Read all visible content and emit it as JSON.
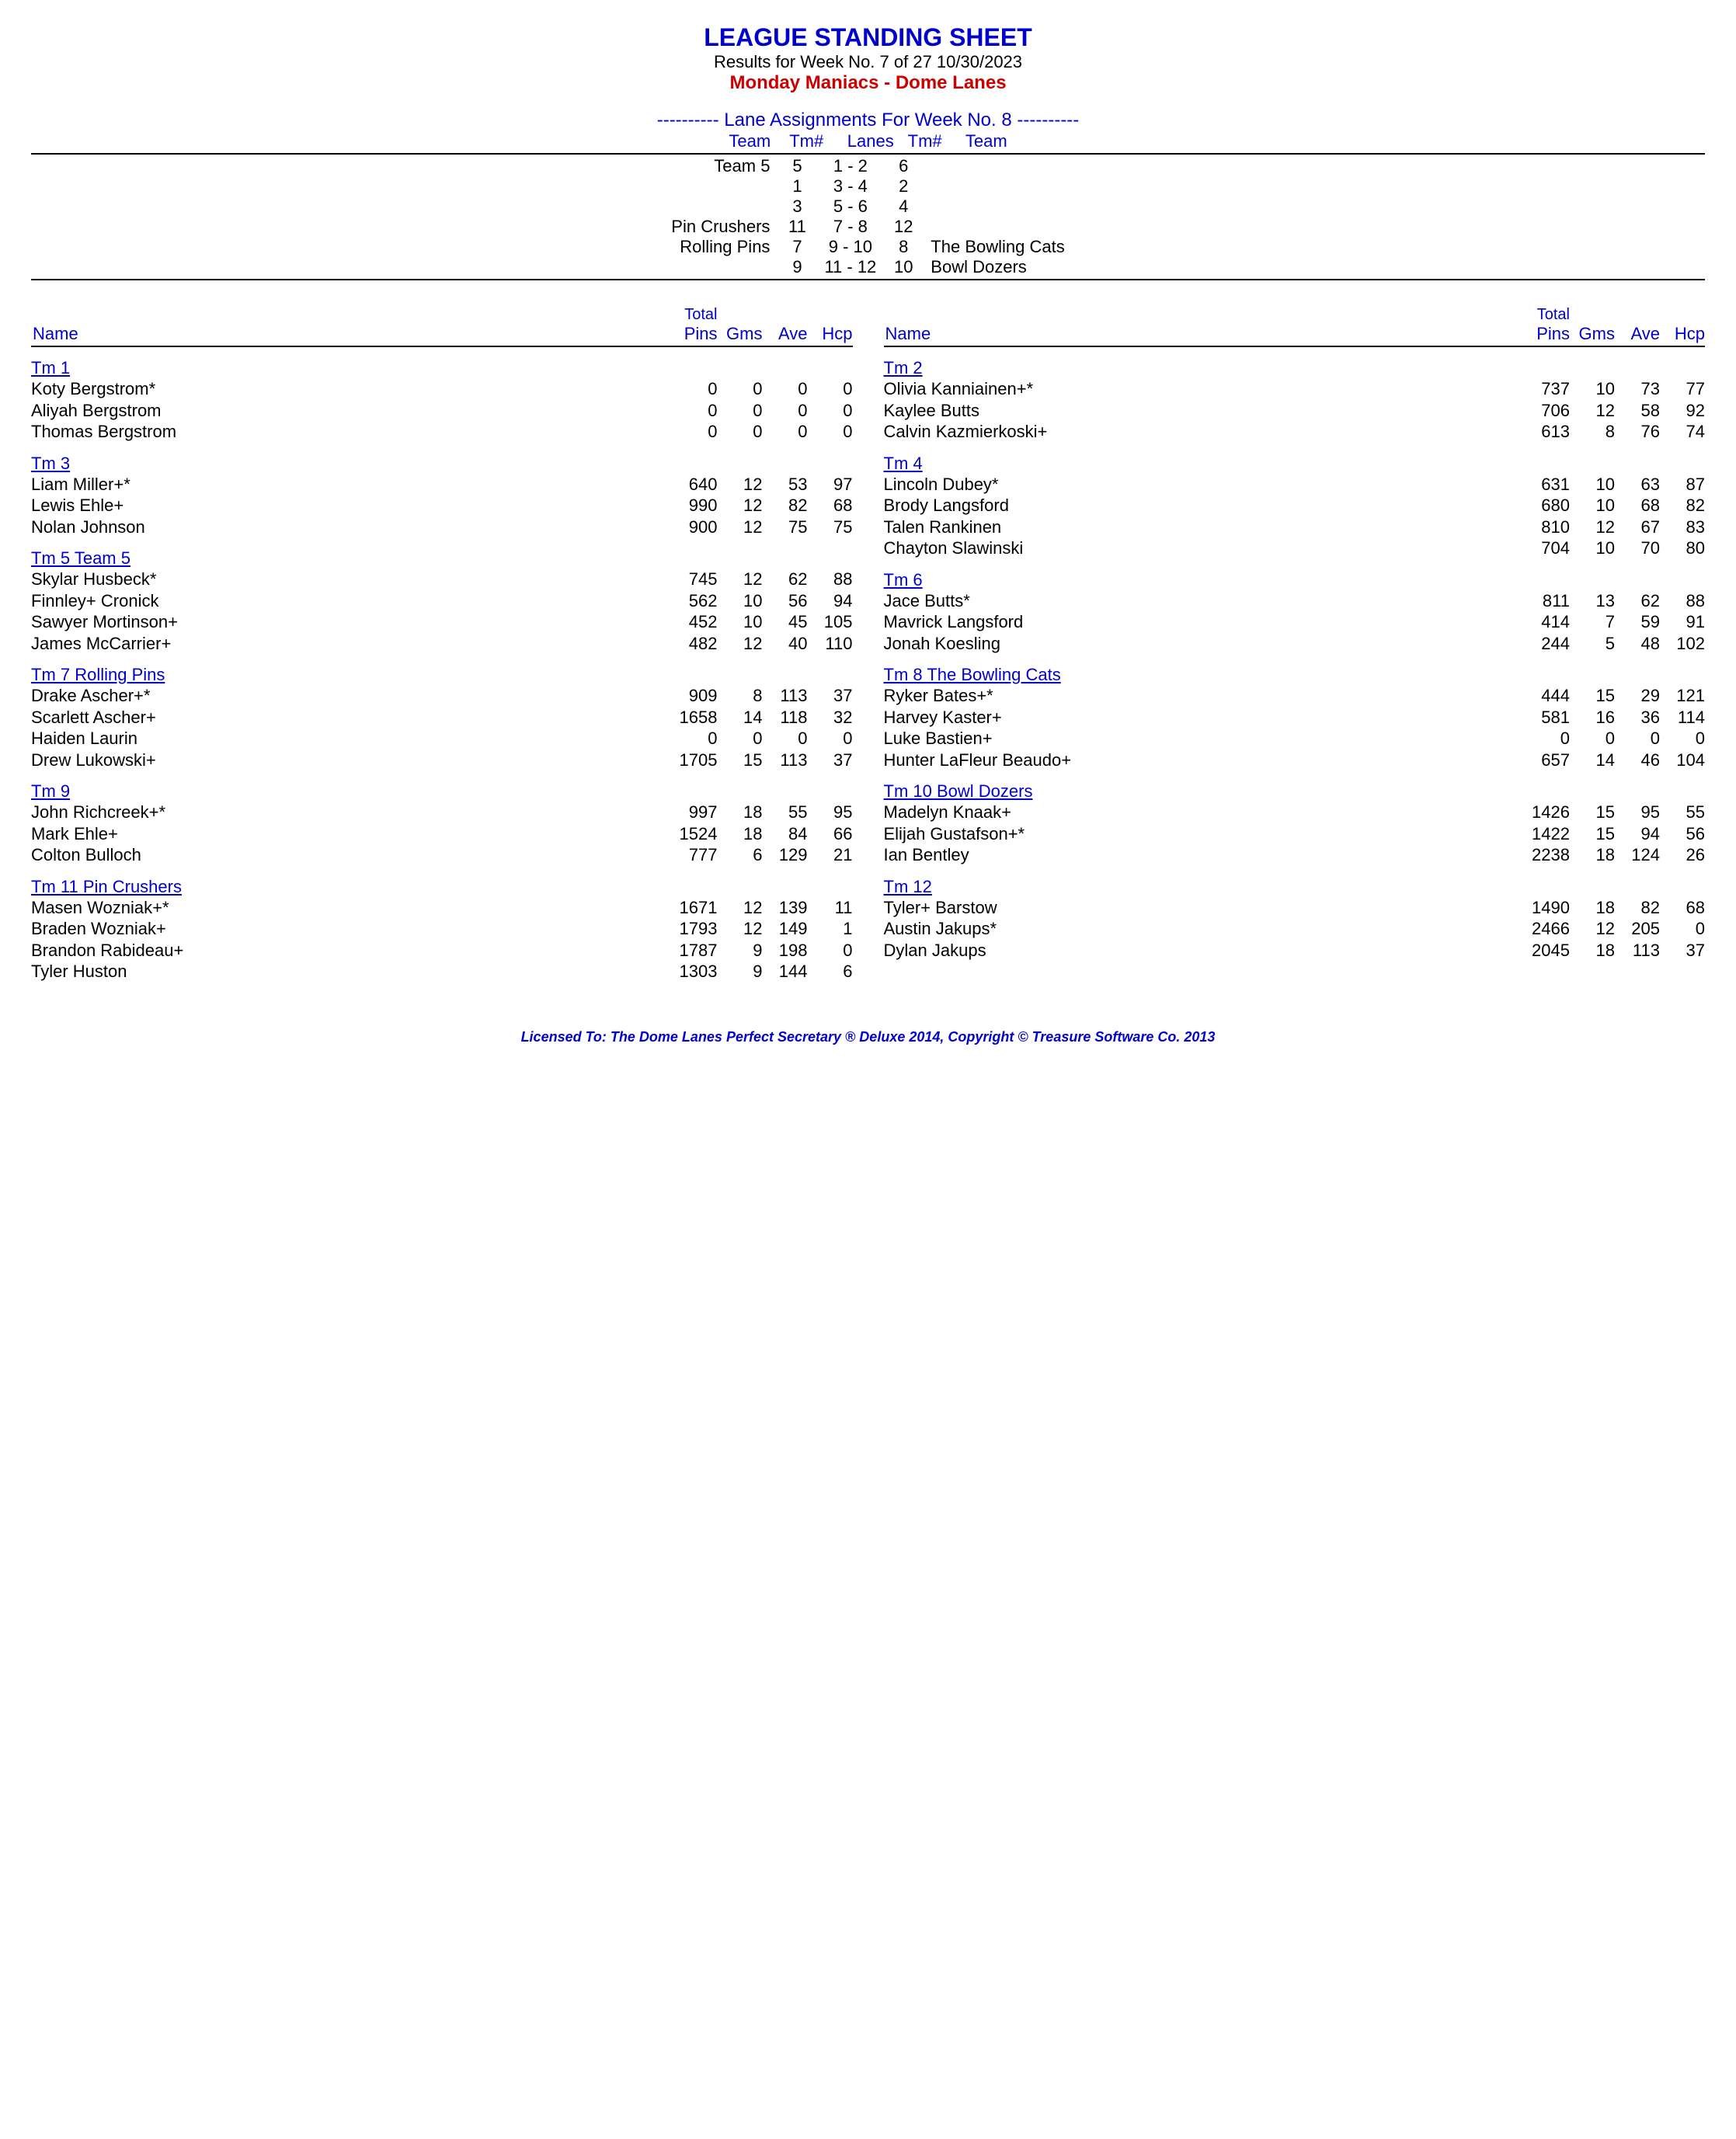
{
  "header": {
    "title": "LEAGUE STANDING SHEET",
    "subtitle": "Results for Week No. 7 of 27    10/30/2023",
    "league": "Monday Maniacs - Dome Lanes"
  },
  "lanes": {
    "heading": "---------- Lane Assignments For Week No. 8 ----------",
    "col_team_l": "Team",
    "col_tm_l": "Tm#",
    "col_lanes": "Lanes",
    "col_tm_r": "Tm#",
    "col_team_r": "Team",
    "rows": [
      {
        "tl": "Team 5",
        "nl": "5",
        "lane": "1 - 2",
        "nr": "6",
        "tr": ""
      },
      {
        "tl": "",
        "nl": "1",
        "lane": "3 - 4",
        "nr": "2",
        "tr": ""
      },
      {
        "tl": "",
        "nl": "3",
        "lane": "5 - 6",
        "nr": "4",
        "tr": ""
      },
      {
        "tl": "Pin Crushers",
        "nl": "11",
        "lane": "7 - 8",
        "nr": "12",
        "tr": ""
      },
      {
        "tl": "Rolling Pins",
        "nl": "7",
        "lane": "9 - 10",
        "nr": "8",
        "tr": "The Bowling Cats"
      },
      {
        "tl": "",
        "nl": "9",
        "lane": "11 - 12",
        "nr": "10",
        "tr": "Bowl Dozers"
      }
    ]
  },
  "col_headers": {
    "name": "Name",
    "total": "Total",
    "pins": "Pins",
    "gms": "Gms",
    "ave": "Ave",
    "hcp": "Hcp"
  },
  "left_teams": [
    {
      "name": "Tm 1",
      "players": [
        {
          "n": "Koty Bergstrom*",
          "p": "0",
          "g": "0",
          "a": "0",
          "h": "0"
        },
        {
          "n": "Aliyah Bergstrom",
          "p": "0",
          "g": "0",
          "a": "0",
          "h": "0"
        },
        {
          "n": "Thomas Bergstrom",
          "p": "0",
          "g": "0",
          "a": "0",
          "h": "0"
        }
      ]
    },
    {
      "name": "Tm 3",
      "players": [
        {
          "n": "Liam Miller+*",
          "p": "640",
          "g": "12",
          "a": "53",
          "h": "97"
        },
        {
          "n": "Lewis Ehle+",
          "p": "990",
          "g": "12",
          "a": "82",
          "h": "68"
        },
        {
          "n": "Nolan Johnson",
          "p": "900",
          "g": "12",
          "a": "75",
          "h": "75"
        }
      ]
    },
    {
      "name": "Tm 5 Team 5",
      "players": [
        {
          "n": "Skylar Husbeck*",
          "p": "745",
          "g": "12",
          "a": "62",
          "h": "88"
        },
        {
          "n": "Finnley+ Cronick",
          "p": "562",
          "g": "10",
          "a": "56",
          "h": "94"
        },
        {
          "n": "Sawyer Mortinson+",
          "p": "452",
          "g": "10",
          "a": "45",
          "h": "105"
        },
        {
          "n": "James McCarrier+",
          "p": "482",
          "g": "12",
          "a": "40",
          "h": "110"
        }
      ]
    },
    {
      "name": "Tm 7 Rolling Pins",
      "players": [
        {
          "n": "Drake Ascher+*",
          "p": "909",
          "g": "8",
          "a": "113",
          "h": "37"
        },
        {
          "n": "Scarlett Ascher+",
          "p": "1658",
          "g": "14",
          "a": "118",
          "h": "32"
        },
        {
          "n": "Haiden Laurin",
          "p": "0",
          "g": "0",
          "a": "0",
          "h": "0"
        },
        {
          "n": "Drew Lukowski+",
          "p": "1705",
          "g": "15",
          "a": "113",
          "h": "37"
        }
      ]
    },
    {
      "name": "Tm 9",
      "players": [
        {
          "n": "John Richcreek+*",
          "p": "997",
          "g": "18",
          "a": "55",
          "h": "95"
        },
        {
          "n": "Mark Ehle+",
          "p": "1524",
          "g": "18",
          "a": "84",
          "h": "66"
        },
        {
          "n": "Colton Bulloch",
          "p": "777",
          "g": "6",
          "a": "129",
          "h": "21"
        }
      ]
    },
    {
      "name": "Tm 11 Pin Crushers",
      "players": [
        {
          "n": "Masen Wozniak+*",
          "p": "1671",
          "g": "12",
          "a": "139",
          "h": "11"
        },
        {
          "n": "Braden Wozniak+",
          "p": "1793",
          "g": "12",
          "a": "149",
          "h": "1"
        },
        {
          "n": "Brandon Rabideau+",
          "p": "1787",
          "g": "9",
          "a": "198",
          "h": "0"
        },
        {
          "n": "Tyler Huston",
          "p": "1303",
          "g": "9",
          "a": "144",
          "h": "6"
        }
      ]
    }
  ],
  "right_teams": [
    {
      "name": "Tm 2",
      "players": [
        {
          "n": "Olivia Kanniainen+*",
          "p": "737",
          "g": "10",
          "a": "73",
          "h": "77"
        },
        {
          "n": "Kaylee Butts",
          "p": "706",
          "g": "12",
          "a": "58",
          "h": "92"
        },
        {
          "n": "Calvin Kazmierkoski+",
          "p": "613",
          "g": "8",
          "a": "76",
          "h": "74"
        }
      ]
    },
    {
      "name": "Tm 4",
      "players": [
        {
          "n": "Lincoln Dubey*",
          "p": "631",
          "g": "10",
          "a": "63",
          "h": "87"
        },
        {
          "n": "Brody Langsford",
          "p": "680",
          "g": "10",
          "a": "68",
          "h": "82"
        },
        {
          "n": "Talen Rankinen",
          "p": "810",
          "g": "12",
          "a": "67",
          "h": "83"
        },
        {
          "n": "Chayton Slawinski",
          "p": "704",
          "g": "10",
          "a": "70",
          "h": "80"
        }
      ]
    },
    {
      "name": "Tm 6",
      "players": [
        {
          "n": "Jace Butts*",
          "p": "811",
          "g": "13",
          "a": "62",
          "h": "88"
        },
        {
          "n": "Mavrick Langsford",
          "p": "414",
          "g": "7",
          "a": "59",
          "h": "91"
        },
        {
          "n": "Jonah Koesling",
          "p": "244",
          "g": "5",
          "a": "48",
          "h": "102"
        }
      ]
    },
    {
      "name": "Tm 8 The Bowling Cats",
      "players": [
        {
          "n": "Ryker Bates+*",
          "p": "444",
          "g": "15",
          "a": "29",
          "h": "121"
        },
        {
          "n": "Harvey Kaster+",
          "p": "581",
          "g": "16",
          "a": "36",
          "h": "114"
        },
        {
          "n": "Luke Bastien+",
          "p": "0",
          "g": "0",
          "a": "0",
          "h": "0"
        },
        {
          "n": "Hunter LaFleur Beaudo+",
          "p": "657",
          "g": "14",
          "a": "46",
          "h": "104"
        }
      ]
    },
    {
      "name": "Tm 10 Bowl Dozers",
      "players": [
        {
          "n": "Madelyn Knaak+",
          "p": "1426",
          "g": "15",
          "a": "95",
          "h": "55"
        },
        {
          "n": "Elijah Gustafson+*",
          "p": "1422",
          "g": "15",
          "a": "94",
          "h": "56"
        },
        {
          "n": "Ian Bentley",
          "p": "2238",
          "g": "18",
          "a": "124",
          "h": "26"
        }
      ]
    },
    {
      "name": "Tm 12",
      "players": [
        {
          "n": "Tyler+ Barstow",
          "p": "1490",
          "g": "18",
          "a": "82",
          "h": "68"
        },
        {
          "n": "Austin Jakups*",
          "p": "2466",
          "g": "12",
          "a": "205",
          "h": "0"
        },
        {
          "n": "Dylan Jakups",
          "p": "2045",
          "g": "18",
          "a": "113",
          "h": "37"
        }
      ]
    }
  ],
  "footer": "Licensed To: The Dome Lanes    Perfect Secretary ® Deluxe  2014, Copyright © Treasure Software Co. 2013"
}
